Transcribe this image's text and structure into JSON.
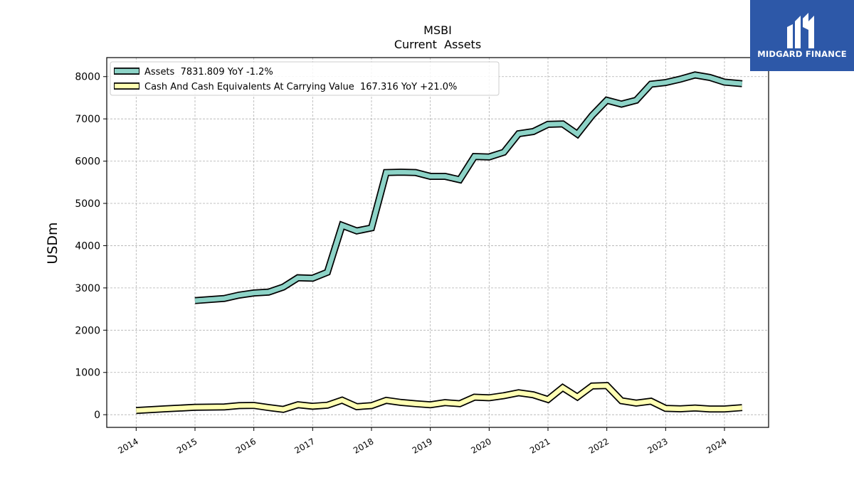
{
  "chart_data": {
    "type": "line",
    "title": "MSBI",
    "subtitle": "Current  Assets",
    "xlabel": "",
    "ylabel": "USDm",
    "xlim": [
      2013.5,
      2024.75
    ],
    "ylim": [
      -300,
      8450
    ],
    "x_ticks": [
      2014,
      2015,
      2016,
      2017,
      2018,
      2019,
      2020,
      2021,
      2022,
      2023,
      2024
    ],
    "x_tick_labels": [
      "2014",
      "2015",
      "2016",
      "2017",
      "2018",
      "2019",
      "2020",
      "2021",
      "2022",
      "2023",
      "2024"
    ],
    "y_ticks": [
      0,
      1000,
      2000,
      3000,
      4000,
      5000,
      6000,
      7000,
      8000
    ],
    "y_tick_labels": [
      "0",
      "1000",
      "2000",
      "3000",
      "4000",
      "5000",
      "6000",
      "7000",
      "8000"
    ],
    "grid": true,
    "legend_position": "top-left",
    "series": [
      {
        "name": "Assets  7831.809 YoY -1.2%",
        "color": "#8dd3c7",
        "points": [
          [
            2015.0,
            2700
          ],
          [
            2015.5,
            2750
          ],
          [
            2015.75,
            2830
          ],
          [
            2016.0,
            2880
          ],
          [
            2016.25,
            2900
          ],
          [
            2016.5,
            3020
          ],
          [
            2016.75,
            3240
          ],
          [
            2017.0,
            3230
          ],
          [
            2017.25,
            3370
          ],
          [
            2017.5,
            4480
          ],
          [
            2017.75,
            4350
          ],
          [
            2018.0,
            4420
          ],
          [
            2018.25,
            5730
          ],
          [
            2018.5,
            5740
          ],
          [
            2018.75,
            5730
          ],
          [
            2019.0,
            5640
          ],
          [
            2019.25,
            5640
          ],
          [
            2019.5,
            5560
          ],
          [
            2019.75,
            6110
          ],
          [
            2020.0,
            6100
          ],
          [
            2020.25,
            6210
          ],
          [
            2020.5,
            6650
          ],
          [
            2020.75,
            6700
          ],
          [
            2021.0,
            6870
          ],
          [
            2021.25,
            6880
          ],
          [
            2021.5,
            6640
          ],
          [
            2021.75,
            7080
          ],
          [
            2022.0,
            7440
          ],
          [
            2022.25,
            7350
          ],
          [
            2022.5,
            7440
          ],
          [
            2022.75,
            7820
          ],
          [
            2023.0,
            7860
          ],
          [
            2023.25,
            7940
          ],
          [
            2023.5,
            8040
          ],
          [
            2023.75,
            7980
          ],
          [
            2024.0,
            7870
          ],
          [
            2024.3,
            7832
          ]
        ]
      },
      {
        "name": "Cash And Cash Equivalents At Carrying Value  167.316 YoY +21.0%",
        "color": "#ffffb3",
        "points": [
          [
            2014.0,
            100
          ],
          [
            2014.5,
            140
          ],
          [
            2015.0,
            175
          ],
          [
            2015.5,
            185
          ],
          [
            2015.75,
            215
          ],
          [
            2016.0,
            220
          ],
          [
            2016.25,
            170
          ],
          [
            2016.5,
            125
          ],
          [
            2016.75,
            235
          ],
          [
            2017.0,
            200
          ],
          [
            2017.25,
            225
          ],
          [
            2017.5,
            345
          ],
          [
            2017.75,
            190
          ],
          [
            2018.0,
            215
          ],
          [
            2018.25,
            340
          ],
          [
            2018.5,
            290
          ],
          [
            2018.75,
            260
          ],
          [
            2019.0,
            235
          ],
          [
            2019.25,
            285
          ],
          [
            2019.5,
            260
          ],
          [
            2019.75,
            415
          ],
          [
            2020.0,
            400
          ],
          [
            2020.25,
            450
          ],
          [
            2020.5,
            520
          ],
          [
            2020.75,
            470
          ],
          [
            2021.0,
            360
          ],
          [
            2021.25,
            640
          ],
          [
            2021.5,
            420
          ],
          [
            2021.75,
            680
          ],
          [
            2022.0,
            690
          ],
          [
            2022.25,
            330
          ],
          [
            2022.5,
            275
          ],
          [
            2022.75,
            320
          ],
          [
            2023.0,
            150
          ],
          [
            2023.25,
            140
          ],
          [
            2023.5,
            160
          ],
          [
            2023.75,
            135
          ],
          [
            2024.0,
            135
          ],
          [
            2024.3,
            167
          ]
        ]
      }
    ]
  },
  "logo": {
    "text": "MIDGARD FINANCE",
    "background": "#2d58a8"
  }
}
